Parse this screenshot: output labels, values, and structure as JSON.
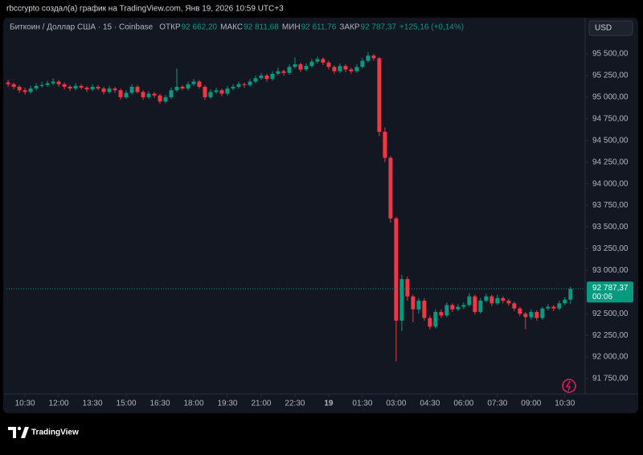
{
  "header": "rbccrypto создал(а) график на TradingView.com, Янв 19, 2026 10:59 UTC+3",
  "footer": "TradingView",
  "chart_data": {
    "type": "candlestick",
    "symbol": "Биткоин / Доллар США · 15 · Coinbase",
    "legend": [
      {
        "name": "ОТКР",
        "label": "92 662,20"
      },
      {
        "name": "МАКС",
        "label": "92 811,68"
      },
      {
        "name": "МИН",
        "label": "92 611,76"
      },
      {
        "name": "ЗАКР",
        "label": "92 787,37"
      }
    ],
    "change": "+125,16 (+0,14%)",
    "currency": "USD",
    "countdown": "00:06",
    "up_color": "#089981",
    "down_color": "#f23645",
    "xlim": [
      -0.3,
      102.6
    ],
    "ylim": [
      91574,
      95918
    ],
    "xticks": [
      {
        "value": 3,
        "label": "10:30"
      },
      {
        "value": 9,
        "label": "12:00"
      },
      {
        "value": 15,
        "label": "13:30"
      },
      {
        "value": 21,
        "label": "15:00"
      },
      {
        "value": 27,
        "label": "16:30"
      },
      {
        "value": 33,
        "label": "18:00"
      },
      {
        "value": 39,
        "label": "19:30"
      },
      {
        "value": 45,
        "label": "21:00"
      },
      {
        "value": 51,
        "label": "22:30"
      },
      {
        "value": 57,
        "label": "19"
      },
      {
        "value": 63,
        "label": "01:30"
      },
      {
        "value": 69,
        "label": "03:00"
      },
      {
        "value": 75,
        "label": "04:30"
      },
      {
        "value": 81,
        "label": "06:00"
      },
      {
        "value": 87,
        "label": "07:30"
      },
      {
        "value": 93,
        "label": "09:00"
      },
      {
        "value": 99,
        "label": "10:30"
      }
    ],
    "yticks": [
      {
        "value": 91750,
        "label": "91 750,00"
      },
      {
        "value": 92000,
        "label": "92 000,00"
      },
      {
        "value": 92250,
        "label": "92 250,00"
      },
      {
        "value": 92500,
        "label": "92 500,00"
      },
      {
        "value": 92750,
        "label": "92 750,00"
      },
      {
        "value": 93000,
        "label": "93 000,00"
      },
      {
        "value": 93250,
        "label": "93 250,00"
      },
      {
        "value": 93500,
        "label": "93 500,00"
      },
      {
        "value": 93750,
        "label": "93 750,00"
      },
      {
        "value": 94000,
        "label": "94 000,00"
      },
      {
        "value": 94250,
        "label": "94 250,00"
      },
      {
        "value": 94500,
        "label": "94 500,00"
      },
      {
        "value": 94750,
        "label": "94 750,00"
      },
      {
        "value": 95000,
        "label": "95 000,00"
      },
      {
        "value": 95250,
        "label": "95 250,00"
      },
      {
        "value": 95500,
        "label": "95 500,00"
      }
    ],
    "candles": [
      [
        95170,
        95200,
        95120,
        95150
      ],
      [
        95150,
        95170,
        95090,
        95120
      ],
      [
        95120,
        95140,
        95050,
        95080
      ],
      [
        95080,
        95110,
        95030,
        95060
      ],
      [
        95060,
        95130,
        95040,
        95100
      ],
      [
        95100,
        95160,
        95080,
        95130
      ],
      [
        95130,
        95180,
        95110,
        95140
      ],
      [
        95140,
        95190,
        95120,
        95160
      ],
      [
        95160,
        95220,
        95140,
        95180
      ],
      [
        95180,
        95200,
        95120,
        95150
      ],
      [
        95150,
        95170,
        95090,
        95120
      ],
      [
        95120,
        95140,
        95070,
        95100
      ],
      [
        95100,
        95160,
        95080,
        95130
      ],
      [
        95130,
        95150,
        95090,
        95110
      ],
      [
        95110,
        95130,
        95060,
        95090
      ],
      [
        95090,
        95150,
        95070,
        95120
      ],
      [
        95120,
        95140,
        95080,
        95100
      ],
      [
        95100,
        95120,
        95030,
        95060
      ],
      [
        95060,
        95130,
        95040,
        95100
      ],
      [
        95100,
        95120,
        95050,
        95080
      ],
      [
        95080,
        95100,
        94970,
        95000
      ],
      [
        95000,
        95080,
        94980,
        95050
      ],
      [
        95050,
        95150,
        95030,
        95120
      ],
      [
        95120,
        95140,
        95040,
        95060
      ],
      [
        95060,
        95080,
        94970,
        95000
      ],
      [
        95000,
        95070,
        94980,
        95040
      ],
      [
        95040,
        95060,
        94990,
        95020
      ],
      [
        95020,
        95040,
        94920,
        94950
      ],
      [
        94950,
        95030,
        94930,
        95000
      ],
      [
        95000,
        95110,
        94980,
        95080
      ],
      [
        95080,
        95330,
        95060,
        95120
      ],
      [
        95120,
        95140,
        95080,
        95100
      ],
      [
        95100,
        95180,
        95080,
        95150
      ],
      [
        95150,
        95210,
        95130,
        95180
      ],
      [
        95180,
        95200,
        95100,
        95120
      ],
      [
        95120,
        95140,
        94970,
        95000
      ],
      [
        95000,
        95090,
        94980,
        95060
      ],
      [
        95060,
        95110,
        95040,
        95080
      ],
      [
        95080,
        95100,
        95010,
        95040
      ],
      [
        95040,
        95130,
        95020,
        95100
      ],
      [
        95100,
        95150,
        95080,
        95120
      ],
      [
        95120,
        95180,
        95100,
        95150
      ],
      [
        95150,
        95170,
        95110,
        95140
      ],
      [
        95140,
        95210,
        95120,
        95180
      ],
      [
        95180,
        95250,
        95160,
        95220
      ],
      [
        95220,
        95280,
        95200,
        95250
      ],
      [
        95250,
        95270,
        95180,
        95210
      ],
      [
        95210,
        95300,
        95190,
        95270
      ],
      [
        95270,
        95340,
        95250,
        95300
      ],
      [
        95300,
        95320,
        95250,
        95280
      ],
      [
        95280,
        95380,
        95260,
        95350
      ],
      [
        95350,
        95460,
        95330,
        95380
      ],
      [
        95380,
        95400,
        95290,
        95320
      ],
      [
        95320,
        95390,
        95300,
        95360
      ],
      [
        95360,
        95440,
        95340,
        95410
      ],
      [
        95410,
        95470,
        95390,
        95440
      ],
      [
        95440,
        95460,
        95370,
        95400
      ],
      [
        95400,
        95420,
        95320,
        95350
      ],
      [
        95350,
        95370,
        95270,
        95300
      ],
      [
        95300,
        95390,
        95280,
        95360
      ],
      [
        95360,
        95380,
        95290,
        95320
      ],
      [
        95320,
        95340,
        95270,
        95300
      ],
      [
        95300,
        95380,
        95280,
        95350
      ],
      [
        95350,
        95450,
        95330,
        95420
      ],
      [
        95420,
        95520,
        95400,
        95480
      ],
      [
        95480,
        95500,
        95420,
        95450
      ],
      [
        95450,
        95460,
        94550,
        94600
      ],
      [
        94600,
        94650,
        94250,
        94300
      ],
      [
        94300,
        94320,
        93550,
        93600
      ],
      [
        93600,
        93620,
        91950,
        92420
      ],
      [
        92420,
        92950,
        92300,
        92900
      ],
      [
        92900,
        92930,
        92650,
        92700
      ],
      [
        92700,
        92720,
        92400,
        92550
      ],
      [
        92550,
        92680,
        92500,
        92650
      ],
      [
        92650,
        92680,
        92420,
        92450
      ],
      [
        92450,
        92480,
        92320,
        92350
      ],
      [
        92350,
        92550,
        92330,
        92520
      ],
      [
        92520,
        92550,
        92450,
        92480
      ],
      [
        92480,
        92630,
        92460,
        92600
      ],
      [
        92600,
        92620,
        92520,
        92550
      ],
      [
        92550,
        92610,
        92530,
        92580
      ],
      [
        92580,
        92630,
        92550,
        92600
      ],
      [
        92600,
        92740,
        92580,
        92700
      ],
      [
        92700,
        92720,
        92490,
        92520
      ],
      [
        92520,
        92680,
        92500,
        92650
      ],
      [
        92650,
        92730,
        92630,
        92700
      ],
      [
        92700,
        92720,
        92590,
        92620
      ],
      [
        92620,
        92720,
        92600,
        92680
      ],
      [
        92680,
        92700,
        92620,
        92650
      ],
      [
        92650,
        92670,
        92590,
        92620
      ],
      [
        92620,
        92640,
        92530,
        92560
      ],
      [
        92560,
        92580,
        92470,
        92500
      ],
      [
        92500,
        92520,
        92320,
        92460
      ],
      [
        92460,
        92550,
        92430,
        92520
      ],
      [
        92520,
        92540,
        92420,
        92450
      ],
      [
        92450,
        92580,
        92430,
        92560
      ],
      [
        92560,
        92610,
        92540,
        92580
      ],
      [
        92580,
        92600,
        92530,
        92560
      ],
      [
        92560,
        92650,
        92540,
        92620
      ],
      [
        92620,
        92690,
        92600,
        92662.2
      ],
      [
        92662.2,
        92811.68,
        92611.76,
        92787.37
      ]
    ]
  }
}
